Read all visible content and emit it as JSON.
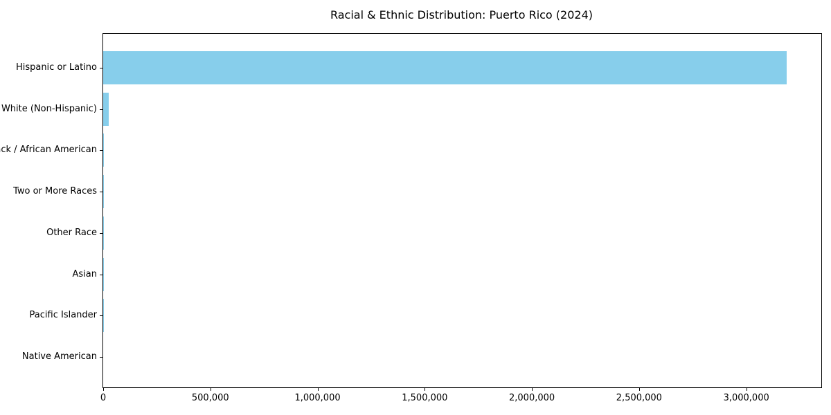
{
  "chart_data": {
    "type": "bar",
    "orientation": "horizontal",
    "title": "Racial & Ethnic Distribution: Puerto Rico (2024)",
    "categories": [
      "Hispanic or Latino",
      "White (Non-Hispanic)",
      "Black / African American",
      "Two or More Races",
      "Other Race",
      "Asian",
      "Pacific Islander",
      "Native American"
    ],
    "values": [
      3190000,
      26000,
      4500,
      2600,
      1900,
      1500,
      300,
      100
    ],
    "xlabel": "",
    "ylabel": "",
    "xlim": [
      0,
      3350000
    ],
    "x_ticks": [
      0,
      500000,
      1000000,
      1500000,
      2000000,
      2500000,
      3000000
    ],
    "x_tick_labels": [
      "0",
      "500,000",
      "1,000,000",
      "1,500,000",
      "2,000,000",
      "2,500,000",
      "3,000,000"
    ],
    "grid": false,
    "legend_position": "none",
    "bar_color": "#87CEEB",
    "axis_color": "#000000",
    "text_color": "#000000",
    "background_color": "#ffffff"
  }
}
